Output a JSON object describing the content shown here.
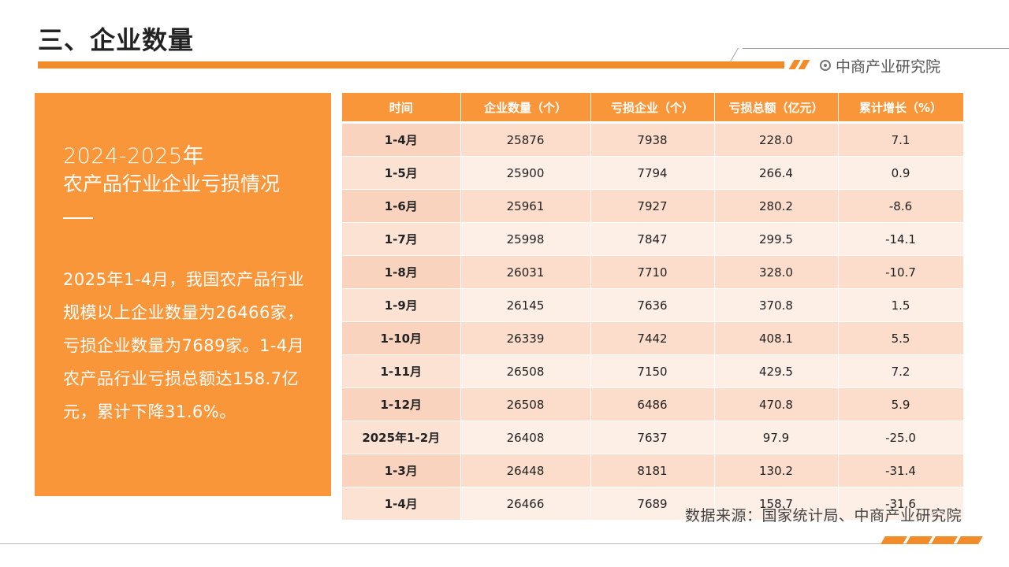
{
  "header": {
    "title": "三、企业数量",
    "brand": "中商产业研究院",
    "brand_icon": "target-icon"
  },
  "panel": {
    "year": "2024-2025年",
    "subtitle": "农产品行业企业亏损情况",
    "body": "2025年1-4月，我国农产品行业规模以上企业数量为26466家，亏损企业数量为7689家。1-4月农产品行业亏损总额达158.7亿元，累计下降31.6%。"
  },
  "table": {
    "headers": [
      "时间",
      "企业数量（个）",
      "亏损企业（个）",
      "亏损总额（亿元）",
      "累计增长（%）"
    ],
    "rows": [
      [
        "1-4月",
        "25876",
        "7938",
        "228.0",
        "7.1"
      ],
      [
        "1-5月",
        "25900",
        "7794",
        "266.4",
        "0.9"
      ],
      [
        "1-6月",
        "25961",
        "7927",
        "280.2",
        "-8.6"
      ],
      [
        "1-7月",
        "25998",
        "7847",
        "299.5",
        "-14.1"
      ],
      [
        "1-8月",
        "26031",
        "7710",
        "328.0",
        "-10.7"
      ],
      [
        "1-9月",
        "26145",
        "7636",
        "370.8",
        "1.5"
      ],
      [
        "1-10月",
        "26339",
        "7442",
        "408.1",
        "5.5"
      ],
      [
        "1-11月",
        "26508",
        "7150",
        "429.5",
        "7.2"
      ],
      [
        "1-12月",
        "26508",
        "6486",
        "470.8",
        "5.9"
      ],
      [
        "2025年1-2月",
        "26408",
        "7637",
        "97.9",
        "-25.0"
      ],
      [
        "1-3月",
        "26448",
        "8181",
        "130.2",
        "-31.4"
      ],
      [
        "1-4月",
        "26466",
        "7689",
        "158.7",
        "-31.6"
      ]
    ]
  },
  "source": "数据来源：国家统计局、中商产业研究院",
  "colors": {
    "accent": "#f9963a",
    "row_odd": "#fcdcca",
    "row_even": "#fdeee6"
  }
}
